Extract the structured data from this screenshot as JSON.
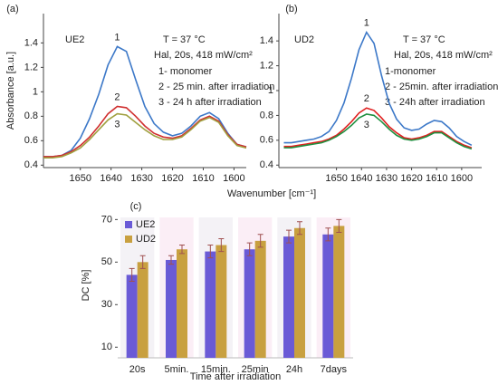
{
  "chart_data": [
    {
      "type": "line",
      "title": "(a)",
      "ylabel": "Absorbance [a.u.]",
      "xlabel": "Wavenumber [cm⁻¹]",
      "annotations": [
        "UE2",
        "T = 37 °C",
        "Hal, 20s,  418 mW/cm²",
        "1- monomer",
        "2 - 25 min. after irradiation",
        "3 - 24 h after irradiation"
      ],
      "xlim": [
        1662,
        1596
      ],
      "xticks": [
        1650,
        1640,
        1630,
        1620,
        1610,
        1600
      ],
      "ylim": [
        0.38,
        1.64
      ],
      "yticks": [
        0.4,
        0.6,
        0.8,
        1.0,
        1.2,
        1.4
      ],
      "x": [
        1662,
        1659,
        1656,
        1653,
        1650,
        1647,
        1644,
        1641,
        1638,
        1635,
        1632,
        1629,
        1626,
        1623,
        1620,
        1617,
        1614,
        1611,
        1608,
        1605,
        1602,
        1599,
        1596
      ],
      "series": [
        {
          "name": "1",
          "color": "#3c78c8",
          "values": [
            0.47,
            0.47,
            0.48,
            0.52,
            0.62,
            0.78,
            0.98,
            1.22,
            1.37,
            1.33,
            1.1,
            0.88,
            0.74,
            0.67,
            0.64,
            0.66,
            0.72,
            0.8,
            0.83,
            0.78,
            0.66,
            0.57,
            0.55
          ]
        },
        {
          "name": "2",
          "color": "#d03030",
          "values": [
            0.47,
            0.47,
            0.48,
            0.51,
            0.56,
            0.63,
            0.72,
            0.82,
            0.88,
            0.87,
            0.8,
            0.72,
            0.66,
            0.63,
            0.62,
            0.64,
            0.7,
            0.77,
            0.8,
            0.76,
            0.65,
            0.57,
            0.55
          ]
        },
        {
          "name": "3",
          "color": "#a0a040",
          "values": [
            0.46,
            0.46,
            0.47,
            0.5,
            0.54,
            0.61,
            0.69,
            0.77,
            0.82,
            0.81,
            0.75,
            0.69,
            0.64,
            0.61,
            0.61,
            0.63,
            0.69,
            0.76,
            0.79,
            0.75,
            0.64,
            0.56,
            0.54
          ]
        }
      ]
    },
    {
      "type": "line",
      "title": "(b)",
      "annotations": [
        "UD2",
        "T = 37 °C",
        "Hal, 20s,  418 mW/cm²",
        "1-monomer",
        "2 - 25min. after irradiation",
        "3 - 24h after irradiation"
      ],
      "xlim": [
        1673,
        1592
      ],
      "xticks": [
        1650,
        1640,
        1630,
        1620,
        1610,
        1600
      ],
      "ylim": [
        0.38,
        1.62
      ],
      "yticks": [
        0.4,
        0.6,
        0.8,
        1.0,
        1.2,
        1.4
      ],
      "x": [
        1671,
        1668,
        1665,
        1662,
        1659,
        1656,
        1653,
        1650,
        1647,
        1644,
        1641,
        1638,
        1635,
        1632,
        1629,
        1626,
        1623,
        1620,
        1617,
        1614,
        1611,
        1608,
        1605,
        1602,
        1599,
        1596
      ],
      "series": [
        {
          "name": "1",
          "color": "#3c78c8",
          "values": [
            0.58,
            0.58,
            0.59,
            0.6,
            0.61,
            0.63,
            0.67,
            0.76,
            0.9,
            1.1,
            1.33,
            1.47,
            1.38,
            1.12,
            0.9,
            0.77,
            0.7,
            0.68,
            0.69,
            0.73,
            0.76,
            0.75,
            0.7,
            0.63,
            0.59,
            0.56
          ]
        },
        {
          "name": "2",
          "color": "#e02020",
          "values": [
            0.55,
            0.55,
            0.56,
            0.57,
            0.58,
            0.59,
            0.61,
            0.64,
            0.69,
            0.75,
            0.82,
            0.86,
            0.84,
            0.78,
            0.71,
            0.66,
            0.62,
            0.61,
            0.62,
            0.64,
            0.67,
            0.67,
            0.63,
            0.59,
            0.56,
            0.54
          ]
        },
        {
          "name": "3",
          "color": "#209040",
          "values": [
            0.54,
            0.54,
            0.55,
            0.56,
            0.57,
            0.58,
            0.6,
            0.63,
            0.67,
            0.72,
            0.78,
            0.81,
            0.8,
            0.75,
            0.69,
            0.64,
            0.61,
            0.6,
            0.61,
            0.63,
            0.66,
            0.66,
            0.62,
            0.58,
            0.55,
            0.53
          ]
        }
      ]
    },
    {
      "type": "bar",
      "title": "(c)",
      "ylabel": "DC [%]",
      "xlabel": "Time after irradiation",
      "categories": [
        "20s",
        "5min.",
        "15min.",
        "25min",
        "24h",
        "7days"
      ],
      "ylim": [
        5,
        71
      ],
      "yticks": [
        10,
        30,
        50,
        70
      ],
      "legend": "top-left",
      "series": [
        {
          "name": "UE2",
          "color": "#6a5ad6",
          "values": [
            44,
            51,
            55,
            56,
            62,
            63
          ],
          "errors": [
            3,
            2,
            3,
            3,
            3,
            3
          ]
        },
        {
          "name": "UD2",
          "color": "#c8a040",
          "values": [
            50,
            56,
            58,
            60,
            66,
            67
          ],
          "errors": [
            3,
            2,
            3,
            3,
            3,
            3
          ]
        }
      ]
    }
  ]
}
